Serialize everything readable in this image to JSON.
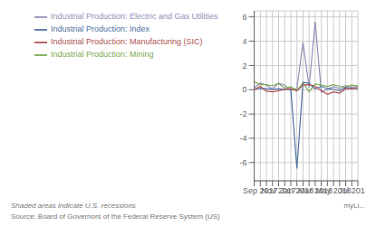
{
  "chart_data": {
    "type": "line",
    "categories": [
      null,
      "Sep 2017",
      null,
      null,
      "Nov 2017",
      null,
      null,
      "Jan 2018",
      null,
      null,
      "Mar 2018",
      null,
      null,
      "May 2018",
      null,
      null,
      "Jul 201",
      null
    ],
    "series": [
      {
        "name": "Industrial Production: Electric and Gas Utilities",
        "color": "#9090b8",
        "values": [
          0.15,
          0.55,
          0.38,
          0.05,
          0.55,
          0.38,
          -0.05,
          0.1,
          3.9,
          0.2,
          5.6,
          -0.2,
          0.05,
          0.25,
          0.1,
          0.35,
          0.22,
          0.28
        ]
      },
      {
        "name": "Industrial Production: Mining",
        "color": "#7aaa50",
        "values": [
          0.65,
          0.42,
          0.42,
          0.32,
          0.52,
          0.12,
          0.25,
          -0.08,
          0.58,
          -0.18,
          0.48,
          0.38,
          0.28,
          0.42,
          0.28,
          0.22,
          0.38,
          0.32
        ]
      },
      {
        "name": "Industrial Production: Index",
        "color": "#5070a0",
        "values": [
          0.05,
          0.12,
          0.08,
          0.02,
          0.08,
          0.02,
          0.05,
          -6.5,
          0.62,
          0.52,
          0.08,
          0.28,
          0.08,
          0.04,
          -0.08,
          0.18,
          0.12,
          0.08
        ]
      },
      {
        "name": "Industrial Production: Manufacturing (SIC)",
        "color": "#b05050",
        "values": [
          0.0,
          0.28,
          -0.12,
          -0.18,
          -0.08,
          0.02,
          0.08,
          -0.1,
          0.38,
          0.42,
          0.28,
          -0.08,
          -0.38,
          -0.18,
          -0.28,
          0.08,
          0.08,
          0.18
        ]
      }
    ],
    "ylim": [
      -7.5,
      6.5
    ],
    "yticks": [
      -6,
      -4,
      -2,
      0,
      2,
      4,
      6
    ],
    "grid": true,
    "legend": "upper left",
    "annotations": [
      "Shaded areas indicate U.S. recessions",
      "Source: Board of Governors of the Federal Reserve System (US)",
      "myLi..."
    ]
  }
}
